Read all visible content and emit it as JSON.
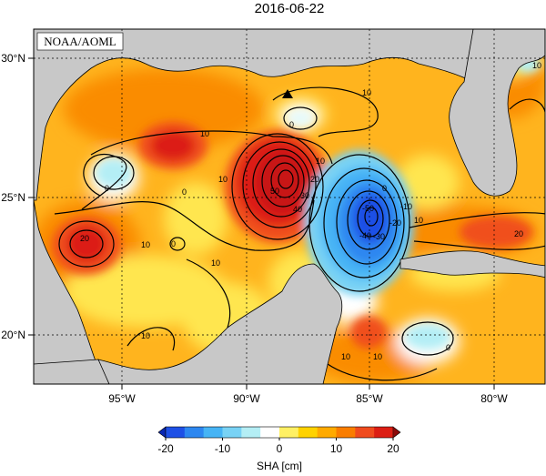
{
  "title": "2016-06-22",
  "credit": "NOAA/AOML",
  "axes": {
    "x_ticks": [
      "95°W",
      "90°W",
      "85°W",
      "80°W"
    ],
    "y_ticks": [
      "30°N",
      "25°N",
      "20°N"
    ]
  },
  "colorbar": {
    "label": "SHA [cm]",
    "ticks": [
      "-20",
      "-10",
      "0",
      "10",
      "20"
    ],
    "range": [
      -20,
      20
    ],
    "colors": [
      "#1e50e6",
      "#2d87f0",
      "#46b4f5",
      "#78d2f5",
      "#b4eef5",
      "#ffffff",
      "#fff064",
      "#ffd200",
      "#ffaa00",
      "#fa7d00",
      "#f04b1e",
      "#dc1e14"
    ]
  },
  "contour_labels": [
    "10",
    "0",
    "10",
    "0",
    "20",
    "10",
    "0",
    "10",
    "50",
    "40",
    "30",
    "20",
    "10",
    "0",
    "-50",
    "-40",
    "-30",
    "-20",
    "-10",
    "10",
    "20",
    "10",
    "0",
    "10",
    "10",
    "10",
    "0",
    "10"
  ],
  "marker": "triangle-marker",
  "colors": {
    "land": "#c8c8c8",
    "ocean_base": "#ffbb22",
    "contour": "#000000"
  }
}
